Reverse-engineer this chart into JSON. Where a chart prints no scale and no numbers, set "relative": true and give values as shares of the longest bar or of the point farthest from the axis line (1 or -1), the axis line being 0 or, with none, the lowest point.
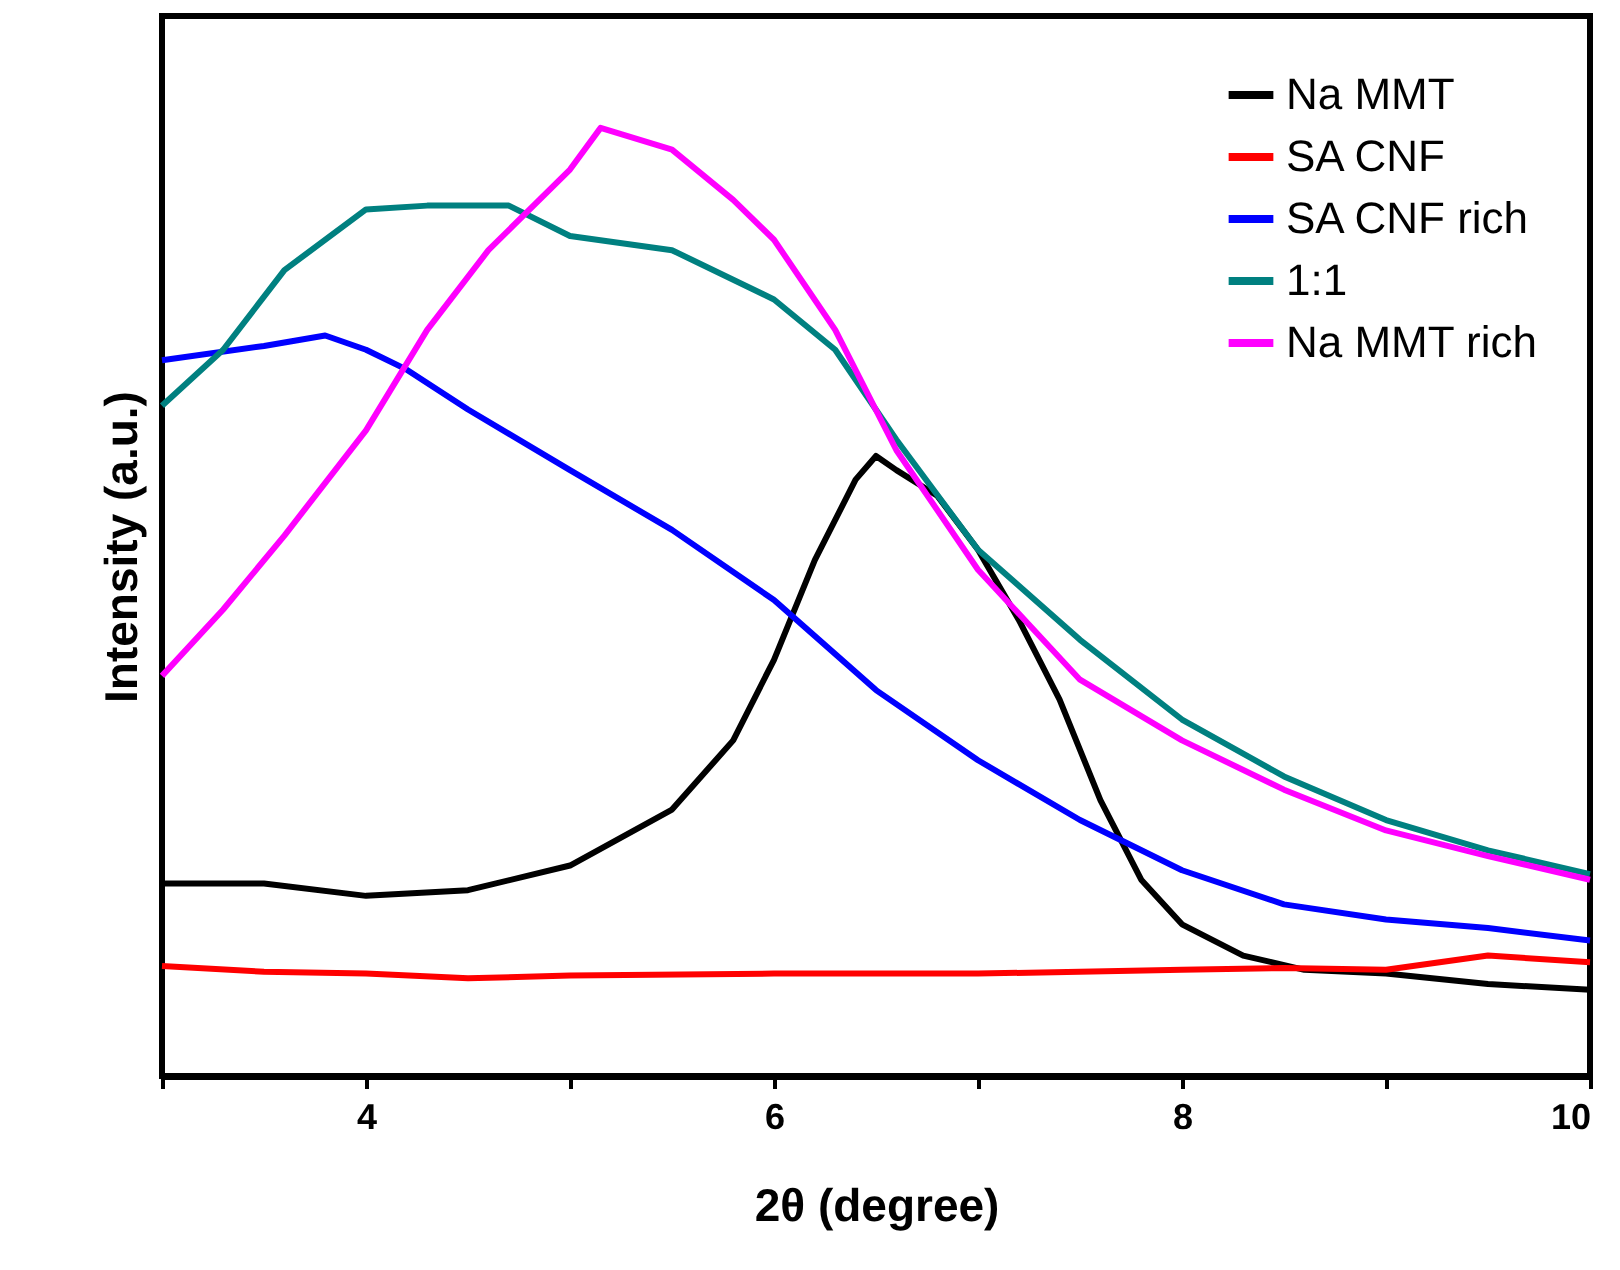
{
  "chart_data": {
    "type": "line",
    "relative": true,
    "xlabel": "2θ (degree)",
    "ylabel": "Intensity (a.u.)",
    "xlim": [
      3,
      10
    ],
    "xticks": [
      {
        "value": 3,
        "label": null
      },
      4,
      {
        "value": 5,
        "label": null
      },
      6,
      {
        "value": 7,
        "label": null
      },
      8,
      {
        "value": 9,
        "label": null
      },
      10
    ],
    "grid": false,
    "legend": "top right",
    "marker": "none",
    "line_style": "solid",
    "series": [
      {
        "name": "Na MMT",
        "color": "#000000",
        "x": [
          3,
          3.5,
          4,
          4.5,
          5,
          5.5,
          5.8,
          6,
          6.2,
          6.4,
          6.5,
          6.6,
          6.8,
          7,
          7.2,
          7.4,
          7.6,
          7.8,
          8,
          8.3,
          8.6,
          9,
          9.5,
          10
        ],
        "values": [
          0.203,
          0.203,
          0.19,
          0.196,
          0.222,
          0.281,
          0.354,
          0.439,
          0.544,
          0.629,
          0.654,
          0.639,
          0.612,
          0.555,
          0.481,
          0.397,
          0.291,
          0.207,
          0.16,
          0.127,
          0.112,
          0.108,
          0.097,
          0.091
        ]
      },
      {
        "name": "SA CNF",
        "color": "#ff0000",
        "x": [
          3,
          3.5,
          4,
          4.5,
          5,
          6,
          7,
          8,
          8.5,
          9,
          9.5,
          10
        ],
        "values": [
          0.116,
          0.11,
          0.108,
          0.103,
          0.106,
          0.108,
          0.108,
          0.112,
          0.114,
          0.112,
          0.127,
          0.12
        ]
      },
      {
        "name": "SA CNF rich",
        "color": "#0000ff",
        "x": [
          3,
          3.5,
          3.8,
          4,
          4.2,
          4.5,
          5,
          5.5,
          6,
          6.5,
          7,
          7.5,
          8,
          8.5,
          9,
          9.5,
          10
        ],
        "values": [
          0.755,
          0.77,
          0.781,
          0.766,
          0.745,
          0.703,
          0.639,
          0.576,
          0.502,
          0.407,
          0.333,
          0.27,
          0.217,
          0.181,
          0.165,
          0.156,
          0.143
        ]
      },
      {
        "name": "1:1",
        "color": "#008080",
        "x": [
          3,
          3.3,
          3.6,
          4,
          4.3,
          4.7,
          5,
          5.5,
          6,
          6.3,
          6.6,
          7,
          7.5,
          8,
          8.5,
          9,
          9.5,
          10
        ],
        "values": [
          0.707,
          0.766,
          0.85,
          0.914,
          0.918,
          0.918,
          0.886,
          0.871,
          0.819,
          0.766,
          0.671,
          0.555,
          0.46,
          0.376,
          0.316,
          0.27,
          0.238,
          0.213
        ]
      },
      {
        "name": "Na MMT rich",
        "color": "#ff00ff",
        "x": [
          3,
          3.3,
          3.6,
          4,
          4.3,
          4.6,
          5,
          5.15,
          5.5,
          5.8,
          6,
          6.3,
          6.6,
          7,
          7.5,
          8,
          8.5,
          9,
          9.5,
          10
        ],
        "values": [
          0.422,
          0.492,
          0.57,
          0.681,
          0.787,
          0.871,
          0.956,
          1,
          0.977,
          0.924,
          0.882,
          0.787,
          0.66,
          0.534,
          0.418,
          0.354,
          0.302,
          0.259,
          0.232,
          0.207
        ]
      }
    ]
  }
}
